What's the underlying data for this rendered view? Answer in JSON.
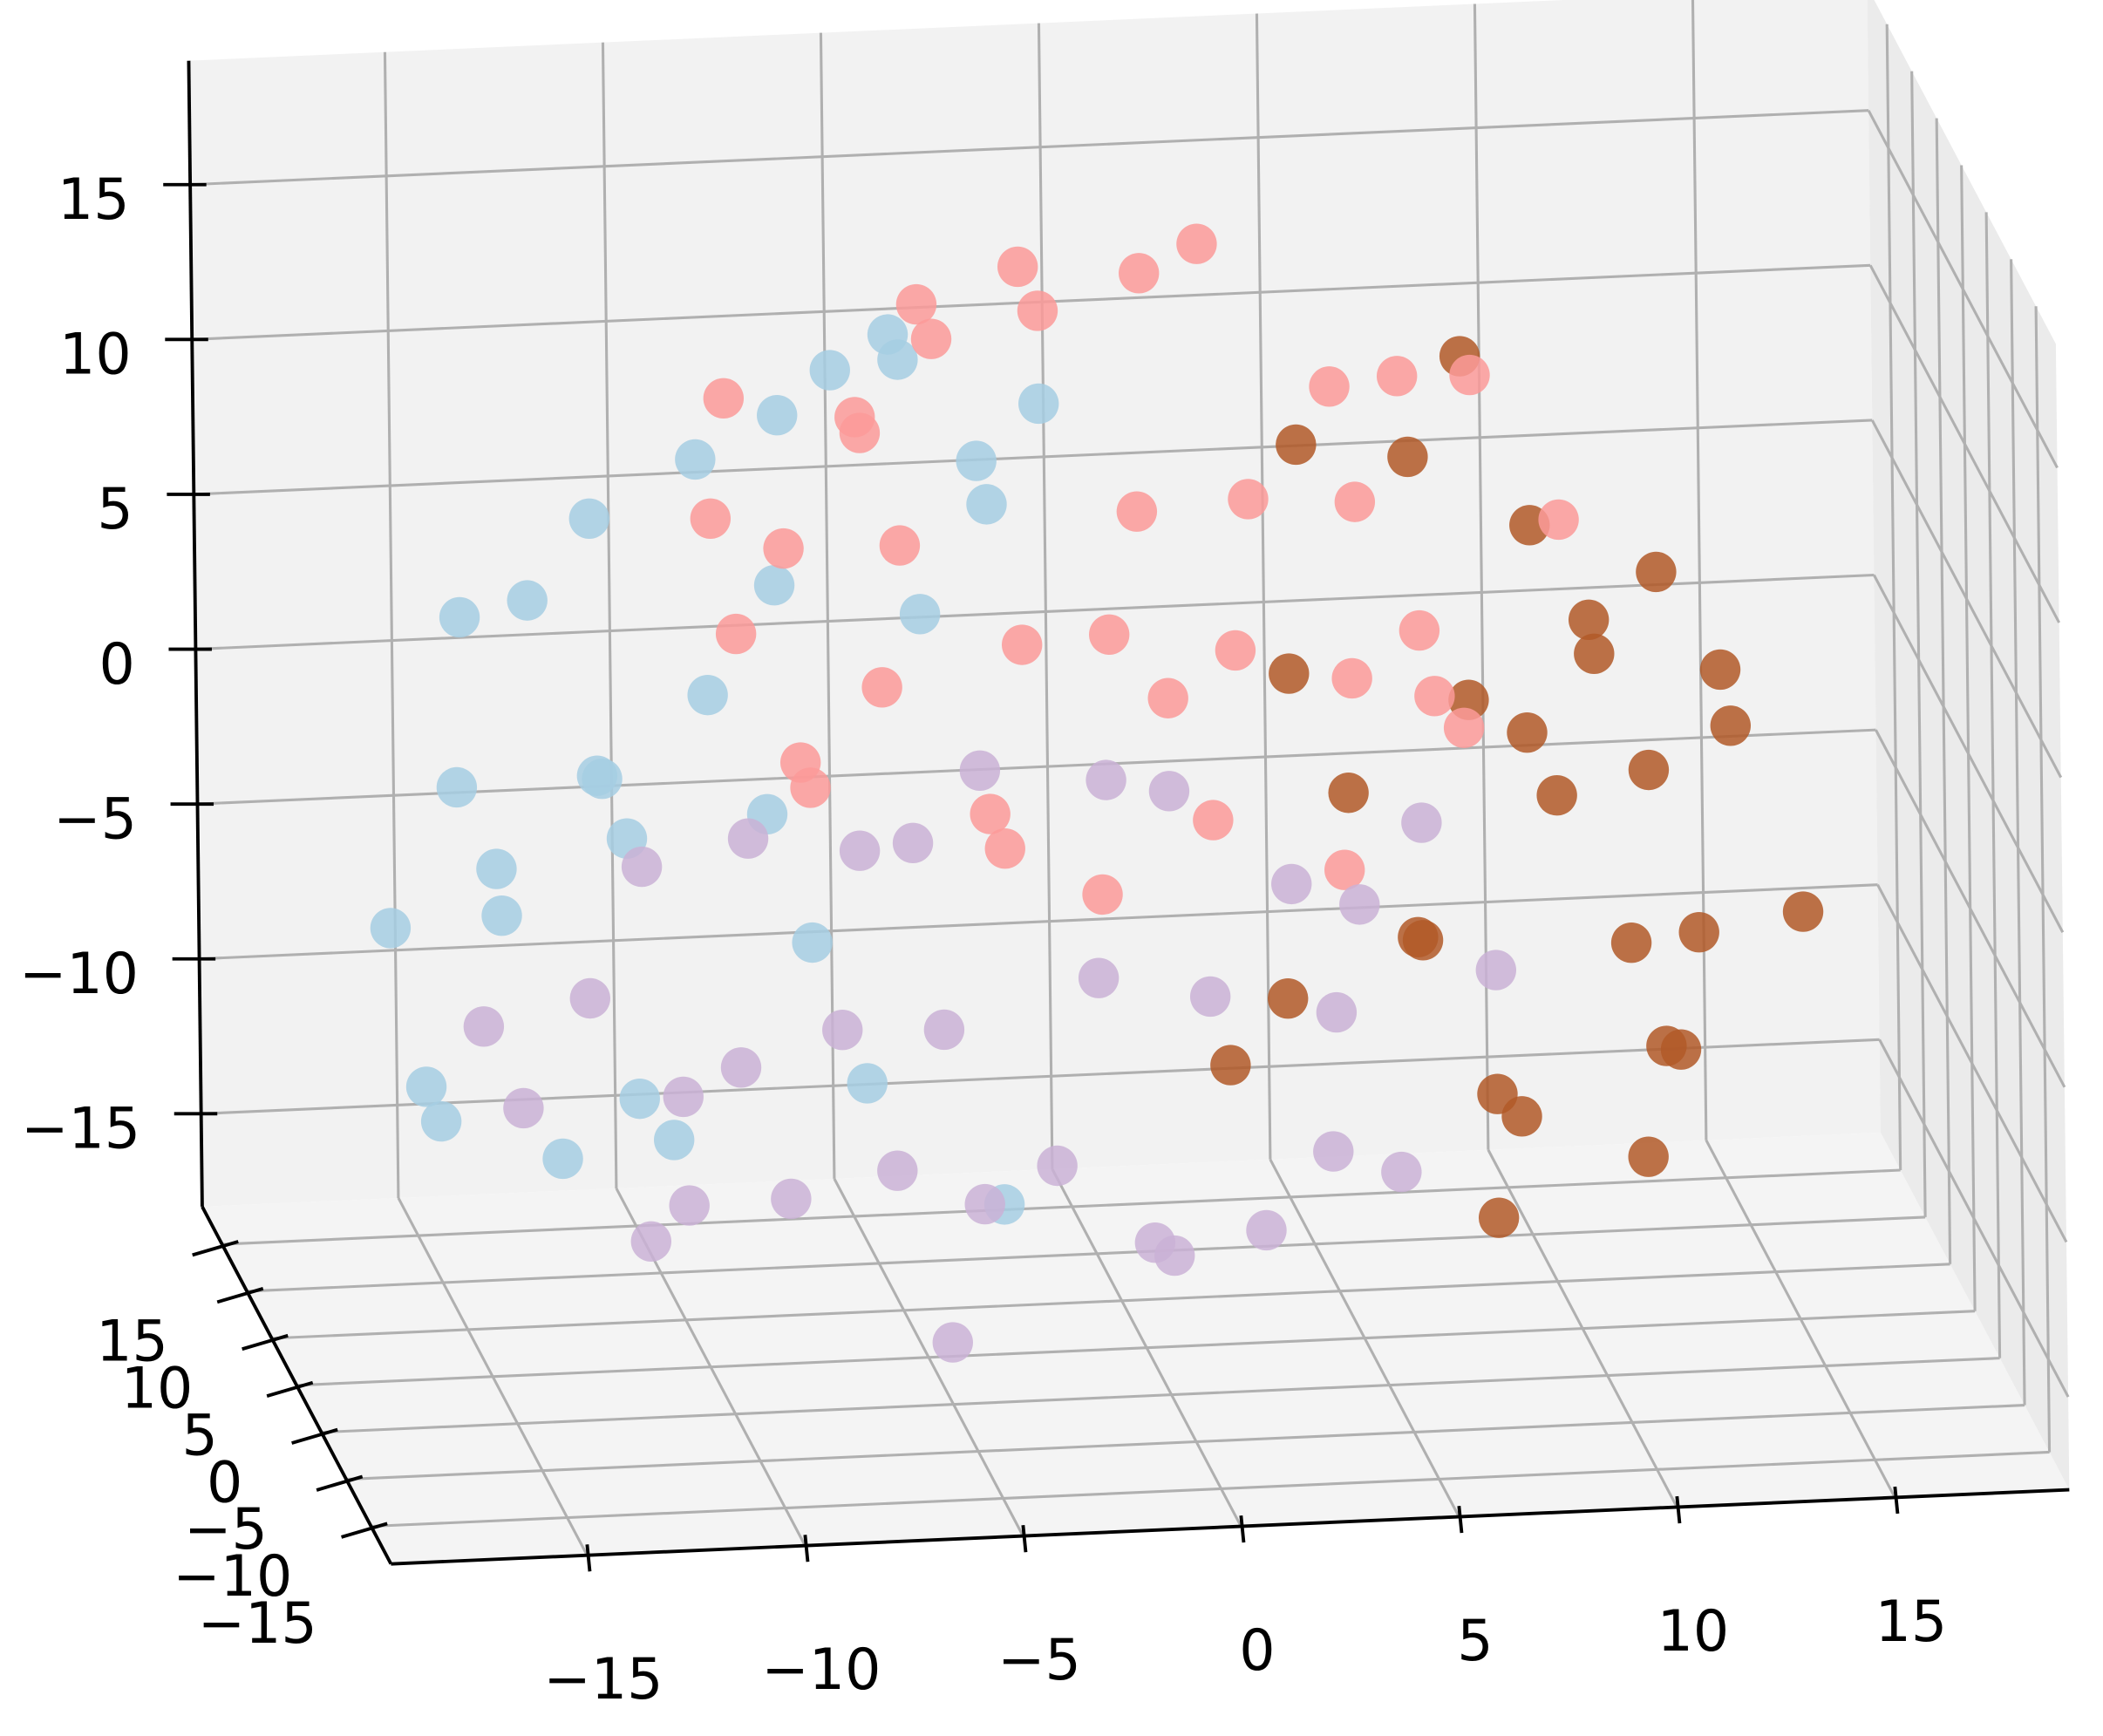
{
  "chart_data": {
    "type": "scatter3d",
    "xlim": [
      -19.5,
      19
    ],
    "ylim": [
      -19,
      19
    ],
    "zlim": [
      -18,
      19
    ],
    "xticks": [
      {
        "value": -15,
        "label": "−15"
      },
      {
        "value": -10,
        "label": "−10"
      },
      {
        "value": -5,
        "label": "−5"
      },
      0,
      5,
      10,
      15
    ],
    "yticks": [
      {
        "value": -15,
        "label": "−15"
      },
      {
        "value": -10,
        "label": "−10"
      },
      {
        "value": -5,
        "label": "−5"
      },
      0,
      5,
      10,
      15
    ],
    "zticks": [
      {
        "value": -15,
        "label": "−15"
      },
      {
        "value": -10,
        "label": "−10"
      },
      {
        "value": -5,
        "label": "−5"
      },
      0,
      5,
      10,
      15
    ],
    "grid": true,
    "series": [
      {
        "color": "#a6cee3",
        "x": [
          -17,
          -16,
          -15,
          -14,
          -13,
          -12,
          -15,
          -14,
          -17,
          -16,
          -13,
          -12,
          -11,
          -10,
          -12,
          -9,
          -8,
          -7,
          -6,
          -5,
          -4,
          -3,
          -10,
          -11,
          -6,
          -4,
          -7,
          -9,
          -5,
          -2
        ],
        "y": [
          2,
          -3,
          5,
          0,
          -6,
          4,
          -2,
          6,
          -5,
          1,
          3,
          -4,
          7,
          -1,
          5,
          -6,
          2,
          0,
          -3,
          4,
          -5,
          6,
          1,
          -2,
          3,
          -7,
          5,
          -4,
          0,
          2
        ],
        "z": [
          -4,
          2,
          5,
          7,
          3,
          0,
          -1,
          -5,
          -7,
          -10,
          -12,
          -8,
          -3,
          4,
          8,
          9,
          12,
          14,
          16,
          13,
          11,
          9,
          11,
          -10,
          -10,
          -11,
          -6,
          1,
          6,
          12
        ]
      },
      {
        "color": "#b15928",
        "x": [
          4,
          6,
          8,
          9,
          10,
          11,
          12,
          13,
          14,
          14.5,
          13,
          12,
          11,
          9,
          8,
          7,
          6,
          5,
          4,
          3,
          2,
          10,
          11,
          9,
          7,
          12,
          13,
          8
        ],
        "y": [
          3,
          -2,
          5,
          0,
          -4,
          6,
          1,
          -3,
          4,
          -6,
          2,
          0,
          -5,
          3,
          -1,
          6,
          -4,
          2,
          5,
          -3,
          0,
          4,
          -2,
          1,
          -5,
          3,
          6,
          -1
        ],
        "z": [
          10,
          11,
          12,
          8,
          5,
          3,
          6,
          4,
          0,
          -3,
          -6,
          -9,
          -11,
          -12,
          -10,
          -7,
          -4,
          -1,
          2,
          -6,
          -9,
          -2,
          -5,
          1,
          4,
          -1,
          -11,
          -14
        ]
      },
      {
        "color": "#fb9a99",
        "x": [
          -10,
          -9,
          -8,
          -7,
          -6,
          -5,
          -4,
          -3,
          -2,
          0,
          2,
          4,
          6,
          8,
          9,
          -9,
          -8,
          -7,
          -6,
          -5,
          -4,
          -3,
          -2,
          -1,
          0,
          1,
          2,
          3,
          4,
          5,
          6,
          7,
          8,
          -1,
          2,
          5
        ],
        "y": [
          -2,
          4,
          1,
          -5,
          3,
          0,
          6,
          -3,
          2,
          -1,
          5,
          -4,
          0,
          3,
          -6,
          2,
          -2,
          5,
          -1,
          4,
          -5,
          1,
          6,
          -3,
          0,
          3,
          -2,
          4,
          -6,
          1,
          -4,
          2,
          5,
          -1,
          3,
          0
        ],
        "z": [
          10,
          12,
          8,
          14,
          11,
          16,
          13,
          18,
          15,
          17,
          16,
          14,
          13,
          12,
          10,
          5,
          2,
          -1,
          4,
          7,
          1,
          -2,
          3,
          6,
          9,
          2,
          5,
          8,
          -1,
          3,
          6,
          2,
          0,
          -3,
          -2,
          9
        ]
      },
      {
        "color": "#cab2d6",
        "x": [
          -15,
          -13,
          -11,
          -9,
          -7,
          -5,
          -3,
          -1,
          1,
          3,
          5,
          7,
          8,
          -14,
          -12,
          -10,
          -8,
          -6,
          -4,
          -2,
          0,
          1,
          -3,
          -5,
          -9,
          -7,
          2,
          4,
          6,
          5,
          -11,
          -1,
          3
        ],
        "y": [
          1,
          -3,
          4,
          0,
          -5,
          2,
          6,
          -2,
          3,
          -4,
          0,
          5,
          -1,
          2,
          -6,
          4,
          1,
          -3,
          5,
          0,
          -2,
          3,
          6,
          -5,
          2,
          -1,
          4,
          -3,
          1,
          5,
          -4,
          0,
          2
        ],
        "z": [
          -7,
          -5,
          -3,
          -1,
          0,
          -2,
          -1,
          1,
          -1,
          -2,
          -4,
          -3,
          -6,
          -10,
          -12,
          -14,
          -13,
          -11,
          -9,
          -12,
          -14,
          -16,
          -15,
          -16,
          -9,
          -7,
          -8,
          -11,
          -13,
          -9,
          -8,
          -6,
          -15
        ]
      }
    ]
  }
}
